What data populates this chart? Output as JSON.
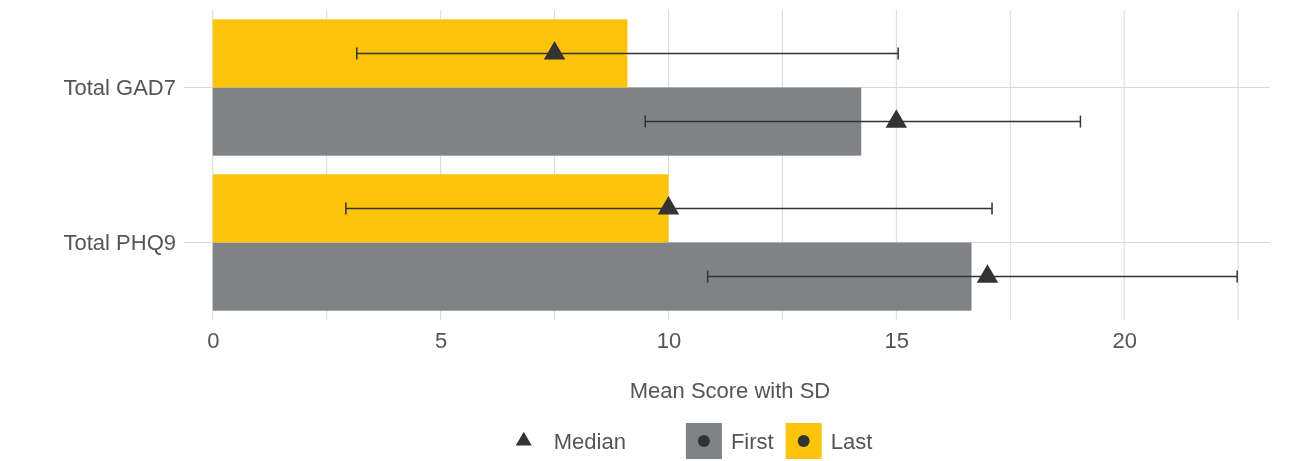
{
  "chart_data": {
    "type": "bar",
    "orientation": "horizontal",
    "xlabel": "Mean Score with SD",
    "categories": [
      "Total GAD7",
      "Total PHQ9"
    ],
    "series": [
      {
        "name": "First",
        "color": "#808285",
        "values": [
          14.23,
          16.65
        ],
        "errors": [
          [
            9.49,
            19.04
          ],
          [
            10.86,
            22.48
          ]
        ]
      },
      {
        "name": "Last",
        "color": "#fcc30b",
        "values": [
          9.1,
          10.0
        ],
        "errors": [
          [
            3.16,
            15.04
          ],
          [
            2.92,
            17.1
          ]
        ]
      },
      {
        "type": "scatter",
        "name": "Median",
        "color": "#333333",
        "values": [
          15,
          17
        ]
      },
      {
        "type": "scatter",
        "color": "#333333",
        "values": [
          7.5,
          10
        ]
      }
    ],
    "xlim": [
      -0.5,
      23.2
    ],
    "xticks": [
      0,
      {
        "value": 2.5,
        "label": null
      },
      5,
      {
        "value": 7.5,
        "label": null
      },
      10,
      {
        "value": 12.5,
        "label": null
      },
      15,
      {
        "value": 17.5,
        "label": null
      },
      20,
      {
        "value": 22.5,
        "label": null
      }
    ],
    "grid": true,
    "legend": "bottom",
    "marker": "triangle"
  }
}
